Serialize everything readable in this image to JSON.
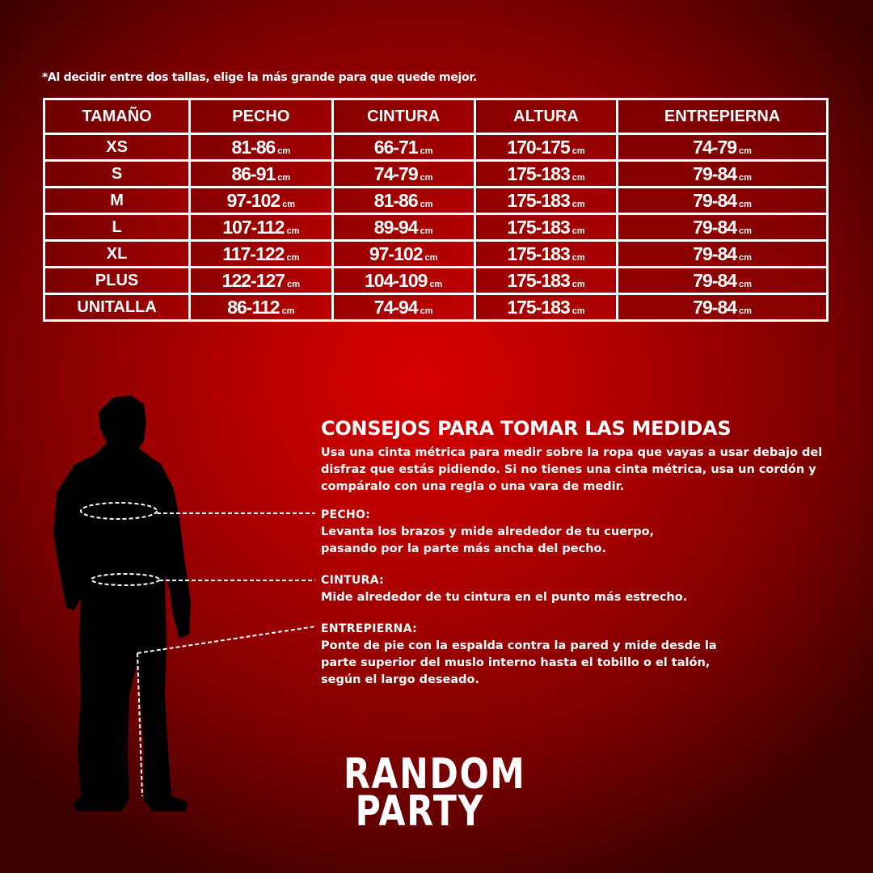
{
  "note": "*Al decidir entre dos tallas, elige la más grande para que quede mejor.",
  "table": {
    "headers": [
      "TAMAÑO",
      "PECHO",
      "CINTURA",
      "ALTURA",
      "ENTREPIERNA"
    ],
    "unit": "cm",
    "rows": [
      [
        "XS",
        "81-86",
        "66-71",
        "170-175",
        "74-79"
      ],
      [
        "S",
        "86-91",
        "74-79",
        "175-183",
        "79-84"
      ],
      [
        "M",
        "97-102",
        "81-86",
        "175-183",
        "79-84"
      ],
      [
        "L",
        "107-112",
        "89-94",
        "175-183",
        "79-84"
      ],
      [
        "XL",
        "117-122",
        "97-102",
        "175-183",
        "79-84"
      ],
      [
        "PLUS",
        "122-127",
        "104-109",
        "175-183",
        "79-84"
      ],
      [
        "UNITALLA",
        "86-112",
        "74-94",
        "175-183",
        "79-84"
      ]
    ]
  },
  "tips": {
    "title": "CONSEJOS PARA TOMAR LAS MEDIDAS",
    "intro": "Usa una cinta métrica para medir sobre la ropa que vayas a usar debajo del disfraz que estás pidiendo. Si no tienes una cinta métrica, usa un cordón y compáralo con una regla o una vara de medir.",
    "sections": [
      {
        "label": "PECHO:",
        "text": "Levanta los brazos y mide alrededor de tu cuerpo, pasando por la parte más ancha del pecho."
      },
      {
        "label": "CINTURA:",
        "text": "Mide alrededor de tu cintura en el punto más estrecho."
      },
      {
        "label": "ENTREPIERNA:",
        "text": "Ponte de pie con la espalda contra la pared y mide desde la parte superior del muslo interno hasta el tobillo o el talón, según el largo deseado."
      }
    ]
  },
  "logo": {
    "line1": "RANDOM",
    "line2": "PARTY"
  },
  "colors": {
    "background": "#c00000",
    "text": "#ffffff",
    "silhouette": "#000000"
  }
}
